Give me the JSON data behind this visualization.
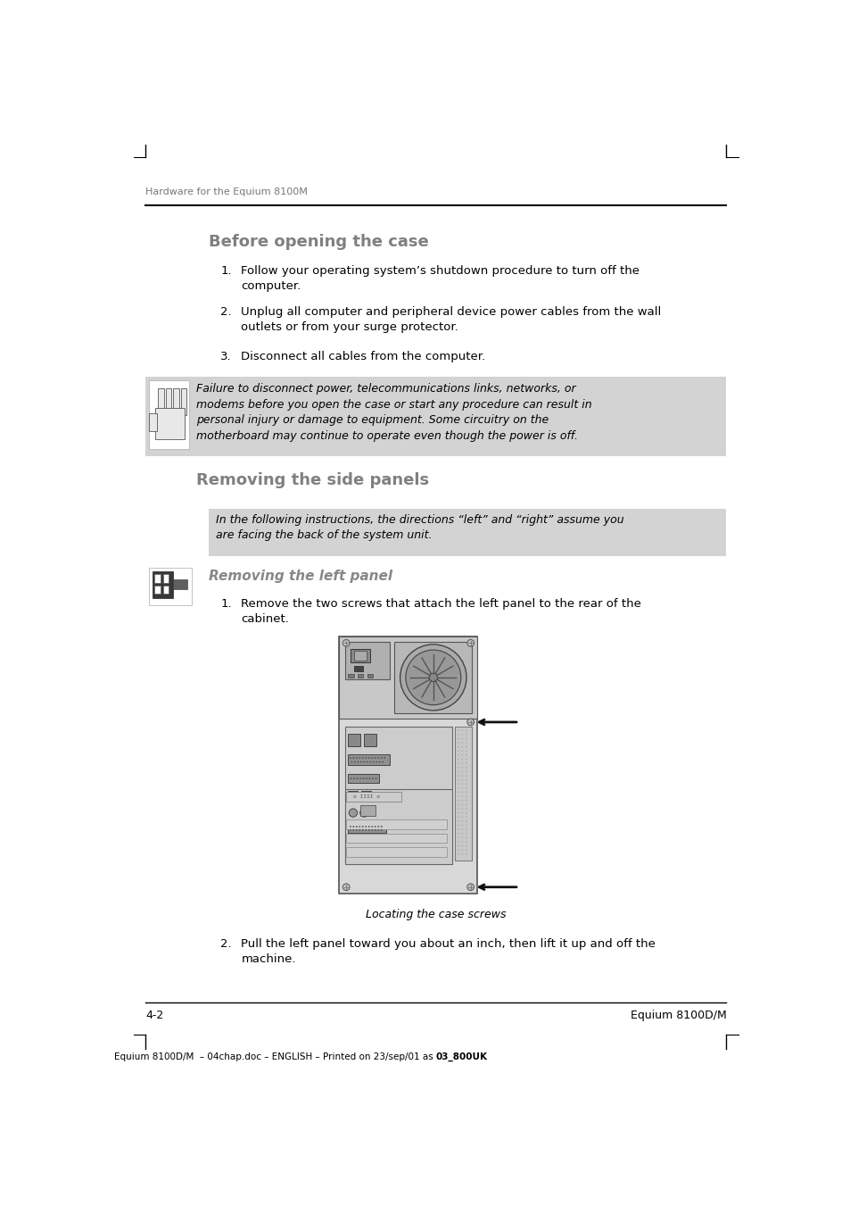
{
  "bg_color": "#ffffff",
  "page_width": 9.54,
  "page_height": 13.51,
  "header_text": "Hardware for the Equium 8100M",
  "section1_title": "Before opening the case",
  "list_items": [
    "Follow your operating system’s shutdown procedure to turn off the\ncomputer.",
    "Unplug all computer and peripheral device power cables from the wall\noutlets or from your surge protector.",
    "Disconnect all cables from the computer."
  ],
  "warning_text": "Failure to disconnect power, telecommunications links, networks, or\nmodems before you open the case or start any procedure can result in\npersonal injury or damage to equipment. Some circuitry on the\nmotherboard may continue to operate even though the power is off.",
  "section2_title": "Removing the side panels",
  "note_text": "In the following instructions, the directions “left” and “right” assume you\nare facing the back of the system unit.",
  "subsection_title": "Removing the left panel",
  "step1_text": "Remove the two screws that attach the left panel to the rear of the\ncabinet.",
  "caption_text": "Locating the case screws",
  "step2_text": "Pull the left panel toward you about an inch, then lift it up and off the\nmachine.",
  "footer_left": "4-2",
  "footer_right": "Equium 8100D/M",
  "footer_bottom_normal": "Equium 8100D/M  – 04chap.doc – ENGLISH – Printed on 23/sep/01 as ",
  "footer_bold": "03_800UK",
  "gray_bg": "#d3d3d3",
  "header_color": "#777777",
  "section_color": "#808080",
  "subsection_color": "#888888",
  "text_color": "#000000"
}
